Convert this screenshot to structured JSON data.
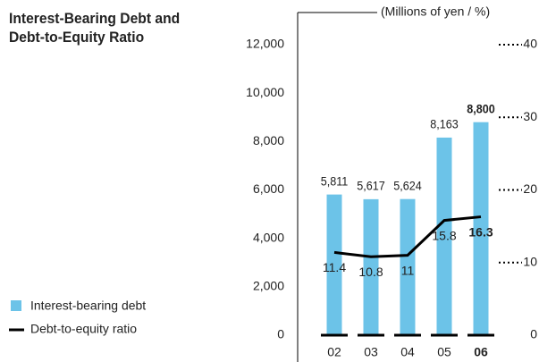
{
  "chart_data": {
    "type": "bar-line",
    "title": "Interest-Bearing Debt and Debt-to-Equity Ratio",
    "unit_label": "(Millions of yen / %)",
    "categories": [
      "02",
      "03",
      "04",
      "05",
      "06"
    ],
    "series": [
      {
        "name": "Interest-bearing debt",
        "type": "bar",
        "color": "#6cc3e8",
        "values": [
          5811,
          5617,
          5624,
          8163,
          8800
        ],
        "value_labels": [
          "5,811",
          "5,617",
          "5,624",
          "8,163",
          "8,800"
        ]
      },
      {
        "name": "Debt-to-equity ratio",
        "type": "line",
        "color": "#000000",
        "axis": "y2",
        "values": [
          11.4,
          10.8,
          11.0,
          15.8,
          16.3
        ]
      }
    ],
    "ylim": [
      0,
      12000
    ],
    "yticks": [
      0,
      {
        "value": 2000,
        "label": "2,000"
      },
      {
        "value": 4000,
        "label": "4,000"
      },
      {
        "value": 6000,
        "label": "6,000"
      },
      {
        "value": 8000,
        "label": "8,000"
      },
      {
        "value": 10000,
        "label": "10,000"
      },
      {
        "value": 12000,
        "label": "12,000"
      }
    ],
    "y2lim": [
      0,
      40
    ],
    "y2ticks": [
      0,
      10,
      20,
      30,
      40
    ]
  }
}
